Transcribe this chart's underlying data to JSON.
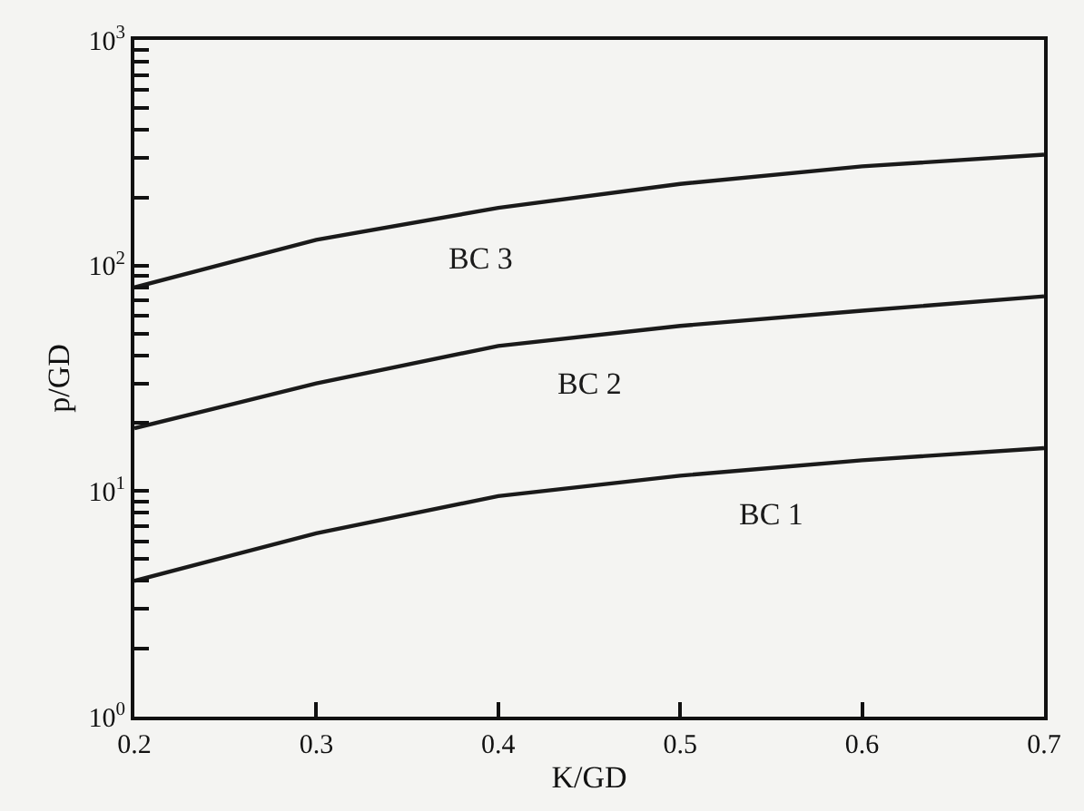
{
  "chart_data": {
    "type": "line",
    "xlabel": "K/GD",
    "ylabel": "p/GD",
    "log": "y",
    "x": [
      0.2,
      0.3,
      0.4,
      0.5,
      0.6,
      0.7
    ],
    "series": [
      {
        "name": "BC 3",
        "color": "#1a1a1a",
        "values": [
          80,
          130,
          180,
          230,
          275,
          310
        ]
      },
      {
        "name": "BC 2",
        "color": "#1a1a1a",
        "values": [
          19,
          30,
          44,
          54,
          63,
          73
        ]
      },
      {
        "name": "BC 1",
        "color": "#1a1a1a",
        "values": [
          4,
          6.5,
          9.5,
          11.7,
          13.7,
          15.5
        ]
      }
    ],
    "xlim": [
      0.2,
      0.7
    ],
    "xticks": [
      0.2,
      0.3,
      0.4,
      0.5,
      0.6,
      0.7
    ],
    "ylim": [
      1,
      1000
    ],
    "yticks": [
      {
        "value": 1,
        "label": "10$^{0}$"
      },
      {
        "value": 2,
        "label": null
      },
      {
        "value": 3,
        "label": null
      },
      {
        "value": 4,
        "label": null
      },
      {
        "value": 5,
        "label": null
      },
      {
        "value": 6,
        "label": null
      },
      {
        "value": 7,
        "label": null
      },
      {
        "value": 8,
        "label": null
      },
      {
        "value": 9,
        "label": null
      },
      {
        "value": 10,
        "label": "10$^{1}$"
      },
      {
        "value": 20,
        "label": null
      },
      {
        "value": 30,
        "label": null
      },
      {
        "value": 40,
        "label": null
      },
      {
        "value": 50,
        "label": null
      },
      {
        "value": 60,
        "label": null
      },
      {
        "value": 70,
        "label": null
      },
      {
        "value": 80,
        "label": null
      },
      {
        "value": 90,
        "label": null
      },
      {
        "value": 100,
        "label": "10$^{2}$"
      },
      {
        "value": 200,
        "label": null
      },
      {
        "value": 300,
        "label": null
      },
      {
        "value": 400,
        "label": null
      },
      {
        "value": 500,
        "label": null
      },
      {
        "value": 600,
        "label": null
      },
      {
        "value": 700,
        "label": null
      },
      {
        "value": 800,
        "label": null
      },
      {
        "value": 900,
        "label": null
      },
      {
        "value": 1000,
        "label": "10$^{3}$"
      }
    ],
    "grid": false,
    "legend": false,
    "marker": "none",
    "line_style": "solid"
  }
}
